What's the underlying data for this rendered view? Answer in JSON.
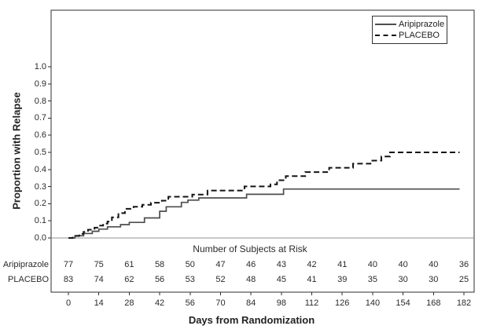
{
  "colors": {
    "aripiprazole_line": "#4d4d4d",
    "placebo_line": "#141414",
    "frame": "#2e2e2e",
    "zero_line": "#909090",
    "text": "#2b2b2b"
  },
  "legend": {
    "items": [
      {
        "label": "Aripiprazole",
        "line_style": "solid"
      },
      {
        "label": "PLACEBO",
        "line_style": "dashed"
      }
    ]
  },
  "y_axis": {
    "label": "Proportion with Relapse",
    "tick_labels": [
      "0.0",
      "0.1",
      "0.2",
      "0.3",
      "0.4",
      "0.5",
      "0.6",
      "0.7",
      "0.8",
      "0.9",
      "1.0"
    ]
  },
  "x_axis": {
    "label": "Days from Randomization",
    "tick_labels": [
      "0",
      "14",
      "28",
      "42",
      "56",
      "70",
      "84",
      "98",
      "112",
      "126",
      "140",
      "154",
      "168",
      "182"
    ]
  },
  "risk_table": {
    "title": "Number of Subjects at Risk",
    "rows": [
      {
        "label": "Aripiprazole",
        "counts": [
          "77",
          "75",
          "61",
          "58",
          "50",
          "47",
          "46",
          "43",
          "42",
          "41",
          "40",
          "40",
          "40",
          "36"
        ]
      },
      {
        "label": "PLACEBO",
        "counts": [
          "83",
          "74",
          "62",
          "56",
          "53",
          "52",
          "48",
          "45",
          "41",
          "39",
          "35",
          "30",
          "30",
          "25"
        ]
      }
    ]
  },
  "chart_data": {
    "type": "line",
    "subtype": "kaplan-meier-cumulative-incidence-step",
    "title": "",
    "xlabel": "Days from Randomization",
    "ylabel": "Proportion with Relapse",
    "xlim": [
      0,
      182
    ],
    "ylim": [
      0.0,
      1.0
    ],
    "x_ticks": [
      0,
      14,
      28,
      42,
      56,
      70,
      84,
      98,
      112,
      126,
      140,
      154,
      168,
      182
    ],
    "y_ticks": [
      0.0,
      0.1,
      0.2,
      0.3,
      0.4,
      0.5,
      0.6,
      0.7,
      0.8,
      0.9,
      1.0
    ],
    "grid": false,
    "legend_position": "top-right",
    "curve_end_day": 180,
    "series": [
      {
        "name": "Aripiprazole",
        "style": "solid",
        "final_value": 0.29,
        "steps": [
          [
            0,
            0
          ],
          [
            3,
            0.013
          ],
          [
            7,
            0.026
          ],
          [
            11,
            0.039
          ],
          [
            14,
            0.052
          ],
          [
            18,
            0.065
          ],
          [
            24,
            0.078
          ],
          [
            28,
            0.091
          ],
          [
            35,
            0.117
          ],
          [
            42,
            0.156
          ],
          [
            45,
            0.182
          ],
          [
            52,
            0.208
          ],
          [
            55,
            0.221
          ],
          [
            60,
            0.234
          ],
          [
            82,
            0.255
          ],
          [
            99,
            0.286
          ]
        ]
      },
      {
        "name": "PLACEBO",
        "style": "dashed",
        "final_value": 0.5,
        "steps": [
          [
            0,
            0
          ],
          [
            2,
            0.012
          ],
          [
            5,
            0.024
          ],
          [
            7,
            0.036
          ],
          [
            9,
            0.048
          ],
          [
            12,
            0.06
          ],
          [
            14,
            0.072
          ],
          [
            16,
            0.084
          ],
          [
            18,
            0.096
          ],
          [
            20,
            0.12
          ],
          [
            23,
            0.145
          ],
          [
            26,
            0.17
          ],
          [
            30,
            0.182
          ],
          [
            34,
            0.194
          ],
          [
            38,
            0.206
          ],
          [
            43,
            0.218
          ],
          [
            46,
            0.241
          ],
          [
            57,
            0.253
          ],
          [
            64,
            0.277
          ],
          [
            81,
            0.301
          ],
          [
            93,
            0.313
          ],
          [
            96,
            0.337
          ],
          [
            100,
            0.361
          ],
          [
            109,
            0.385
          ],
          [
            120,
            0.41
          ],
          [
            131,
            0.434
          ],
          [
            139,
            0.452
          ],
          [
            144,
            0.476
          ],
          [
            148,
            0.5
          ]
        ]
      }
    ],
    "number_at_risk": {
      "Aripiprazole": [
        77,
        75,
        61,
        58,
        50,
        47,
        46,
        43,
        42,
        41,
        40,
        40,
        40,
        36
      ],
      "PLACEBO": [
        83,
        74,
        62,
        56,
        53,
        52,
        48,
        45,
        41,
        39,
        35,
        30,
        30,
        25
      ]
    }
  }
}
